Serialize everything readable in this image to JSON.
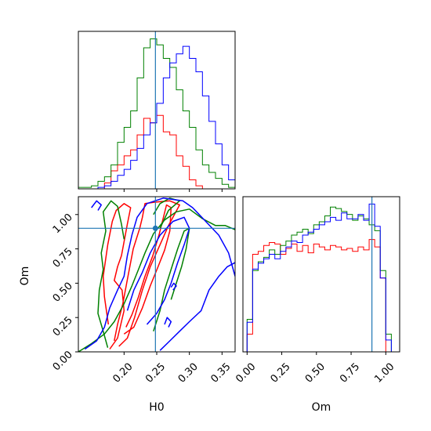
{
  "chart_data": [
    {
      "type": "histogram",
      "panel": "H0 marginal",
      "x_range": [
        0.13,
        0.37
      ],
      "truth": 0.248,
      "bin_edges_start": 0.13,
      "bin_width": 0.01,
      "series": [
        {
          "color": "#ff0000",
          "counts": [
            0,
            0,
            0,
            0,
            0.04,
            0.12,
            0.16,
            0.22,
            0.26,
            0.36,
            0.47,
            0.44,
            0.49,
            0.38,
            0.36,
            0.22,
            0.15,
            0.06,
            0.02,
            0,
            0,
            0,
            0,
            0
          ]
        },
        {
          "color": "#008000",
          "counts": [
            0.01,
            0.01,
            0.02,
            0.05,
            0.08,
            0.16,
            0.31,
            0.41,
            0.52,
            0.74,
            0.94,
            1.0,
            0.96,
            0.87,
            0.81,
            0.66,
            0.52,
            0.41,
            0.26,
            0.16,
            0.11,
            0.07,
            0.03,
            0.01
          ]
        },
        {
          "color": "#0000ff",
          "counts": [
            0,
            0,
            0,
            0.01,
            0.02,
            0.05,
            0.09,
            0.13,
            0.19,
            0.27,
            0.36,
            0.44,
            0.57,
            0.74,
            0.84,
            0.9,
            0.95,
            0.87,
            0.78,
            0.62,
            0.45,
            0.3,
            0.16,
            0.06
          ]
        }
      ]
    },
    {
      "type": "histogram",
      "panel": "Om marginal",
      "x_range": [
        -0.03,
        1.1
      ],
      "truth": 0.9,
      "bin_edges_start": 0.0,
      "bin_width": 0.04,
      "series": [
        {
          "color": "#ff0000",
          "counts": [
            0.12,
            0.66,
            0.68,
            0.72,
            0.74,
            0.73,
            0.66,
            0.7,
            0.73,
            0.68,
            0.72,
            0.67,
            0.73,
            0.71,
            0.69,
            0.72,
            0.71,
            0.69,
            0.7,
            0.68,
            0.71,
            0.69,
            0.76,
            0.71,
            0.5,
            0.0
          ]
        },
        {
          "color": "#008000",
          "counts": [
            0.22,
            0.55,
            0.61,
            0.64,
            0.69,
            0.66,
            0.72,
            0.75,
            0.79,
            0.81,
            0.83,
            0.8,
            0.86,
            0.88,
            0.92,
            0.98,
            0.97,
            0.95,
            0.93,
            0.89,
            0.92,
            0.9,
            0.86,
            0.82,
            0.55,
            0.12
          ]
        },
        {
          "color": "#0000ff",
          "counts": [
            0.2,
            0.56,
            0.6,
            0.63,
            0.66,
            0.63,
            0.68,
            0.71,
            0.75,
            0.74,
            0.79,
            0.81,
            0.83,
            0.86,
            0.88,
            0.91,
            0.89,
            0.94,
            0.9,
            0.9,
            0.93,
            0.89,
            1.0,
            0.85,
            0.5,
            0.08
          ]
        }
      ]
    },
    {
      "type": "contour",
      "panel": "H0 vs Om joint",
      "xlabel": "H0",
      "ylabel": "Om",
      "x_range": [
        0.13,
        0.37
      ],
      "y_range": [
        0.0,
        1.13
      ],
      "x_ticks": [
        "0.20",
        "0.25",
        "0.30",
        "0.35"
      ],
      "y_ticks": [
        "0.00",
        "0.25",
        "0.50",
        "0.75",
        "1.00"
      ],
      "truth": {
        "x": 0.248,
        "y": 0.9
      },
      "series": [
        {
          "color": "#ff0000",
          "contours": [
            [
              [
                0.2,
                0.13
              ],
              [
                0.215,
                0.18
              ],
              [
                0.228,
                0.32
              ],
              [
                0.24,
                0.48
              ],
              [
                0.252,
                0.62
              ],
              [
                0.262,
                0.74
              ],
              [
                0.27,
                0.88
              ],
              [
                0.272,
                1.05
              ],
              [
                0.265,
                1.07
              ],
              [
                0.254,
                0.86
              ],
              [
                0.244,
                0.7
              ],
              [
                0.232,
                0.55
              ],
              [
                0.222,
                0.4
              ],
              [
                0.212,
                0.27
              ],
              [
                0.203,
                0.18
              ]
            ],
            [
              [
                0.192,
                0.04
              ],
              [
                0.205,
                0.1
              ],
              [
                0.216,
                0.25
              ],
              [
                0.228,
                0.45
              ],
              [
                0.24,
                0.62
              ],
              [
                0.255,
                0.78
              ],
              [
                0.268,
                0.92
              ],
              [
                0.285,
                1.07
              ],
              [
                0.27,
                1.1
              ],
              [
                0.247,
                1.09
              ],
              [
                0.232,
                1.08
              ],
              [
                0.228,
                0.98
              ],
              [
                0.224,
                0.9
              ],
              [
                0.214,
                0.75
              ],
              [
                0.206,
                0.55
              ],
              [
                0.198,
                0.35
              ],
              [
                0.19,
                0.2
              ],
              [
                0.185,
                0.08
              ]
            ],
            [
              [
                0.178,
                0.02
              ],
              [
                0.19,
                0.1
              ],
              [
                0.2,
                0.3
              ],
              [
                0.197,
                0.45
              ],
              [
                0.185,
                0.52
              ],
              [
                0.19,
                0.62
              ],
              [
                0.196,
                0.7
              ],
              [
                0.205,
                0.93
              ],
              [
                0.21,
                1.05
              ],
              [
                0.2,
                1.08
              ],
              [
                0.188,
                1.03
              ],
              [
                0.182,
                0.95
              ],
              [
                0.175,
                0.78
              ],
              [
                0.168,
                0.55
              ],
              [
                0.17,
                0.4
              ],
              [
                0.176,
                0.2
              ]
            ]
          ]
        },
        {
          "color": "#008000",
          "contours": [
            [
              [
                0.13,
                0.0
              ],
              [
                0.15,
                0.06
              ],
              [
                0.17,
                0.13
              ],
              [
                0.185,
                0.22
              ],
              [
                0.2,
                0.35
              ],
              [
                0.212,
                0.48
              ],
              [
                0.222,
                0.6
              ],
              [
                0.232,
                0.72
              ],
              [
                0.245,
                0.86
              ],
              [
                0.262,
                0.96
              ],
              [
                0.28,
                1.02
              ],
              [
                0.3,
                1.04
              ],
              [
                0.32,
                0.97
              ],
              [
                0.34,
                0.92
              ],
              [
                0.355,
                0.92
              ],
              [
                0.37,
                0.89
              ]
            ],
            [
              [
                0.255,
                0.9
              ],
              [
                0.268,
                1.03
              ],
              [
                0.285,
                1.1
              ],
              [
                0.27,
                1.12
              ],
              [
                0.255,
                1.08
              ],
              [
                0.245,
                1.0
              ]
            ],
            [
              [
                0.175,
                0.03
              ],
              [
                0.168,
                0.15
              ],
              [
                0.16,
                0.28
              ],
              [
                0.162,
                0.45
              ],
              [
                0.168,
                0.6
              ],
              [
                0.165,
                0.72
              ],
              [
                0.172,
                0.88
              ],
              [
                0.168,
                1.02
              ],
              [
                0.18,
                1.1
              ],
              [
                0.19,
                1.06
              ],
              [
                0.196,
                0.93
              ],
              [
                0.2,
                0.82
              ]
            ],
            [
              [
                0.245,
                0.15
              ],
              [
                0.255,
                0.3
              ],
              [
                0.262,
                0.45
              ],
              [
                0.272,
                0.6
              ],
              [
                0.282,
                0.75
              ],
              [
                0.292,
                0.88
              ],
              [
                0.3,
                0.9
              ],
              [
                0.295,
                0.75
              ],
              [
                0.288,
                0.62
              ],
              [
                0.28,
                0.5
              ],
              [
                0.272,
                0.38
              ]
            ]
          ]
        },
        {
          "color": "#0000ff",
          "contours": [
            [
              [
                0.14,
                0.02
              ],
              [
                0.158,
                0.08
              ],
              [
                0.17,
                0.18
              ],
              [
                0.178,
                0.32
              ],
              [
                0.19,
                0.45
              ],
              [
                0.2,
                0.55
              ],
              [
                0.205,
                0.7
              ],
              [
                0.212,
                0.85
              ],
              [
                0.22,
                0.98
              ],
              [
                0.235,
                1.08
              ],
              [
                0.26,
                1.12
              ],
              [
                0.29,
                1.1
              ],
              [
                0.305,
                1.05
              ],
              [
                0.325,
                0.95
              ],
              [
                0.345,
                0.85
              ],
              [
                0.36,
                0.72
              ],
              [
                0.37,
                0.55
              ]
            ],
            [
              [
                0.255,
                0.01
              ],
              [
                0.27,
                0.08
              ],
              [
                0.285,
                0.15
              ],
              [
                0.3,
                0.22
              ],
              [
                0.318,
                0.3
              ],
              [
                0.33,
                0.45
              ],
              [
                0.345,
                0.55
              ],
              [
                0.358,
                0.62
              ],
              [
                0.37,
                0.65
              ]
            ],
            [
              [
                0.205,
                0.3
              ],
              [
                0.215,
                0.45
              ],
              [
                0.228,
                0.58
              ],
              [
                0.24,
                0.72
              ],
              [
                0.255,
                0.85
              ],
              [
                0.275,
                0.95
              ],
              [
                0.292,
                0.98
              ],
              [
                0.3,
                0.9
              ],
              [
                0.292,
                0.78
              ],
              [
                0.282,
                0.65
              ],
              [
                0.272,
                0.5
              ],
              [
                0.262,
                0.38
              ],
              [
                0.25,
                0.28
              ],
              [
                0.235,
                0.2
              ]
            ],
            [
              [
                0.268,
                0.18
              ],
              [
                0.272,
                0.22
              ],
              [
                0.266,
                0.25
              ],
              [
                0.262,
                0.2
              ]
            ],
            [
              [
                0.275,
                0.45
              ],
              [
                0.28,
                0.48
              ],
              [
                0.276,
                0.5
              ],
              [
                0.272,
                0.47
              ]
            ],
            [
              [
                0.15,
                1.05
              ],
              [
                0.158,
                1.1
              ],
              [
                0.165,
                1.07
              ],
              [
                0.16,
                1.03
              ]
            ]
          ]
        }
      ]
    }
  ]
}
